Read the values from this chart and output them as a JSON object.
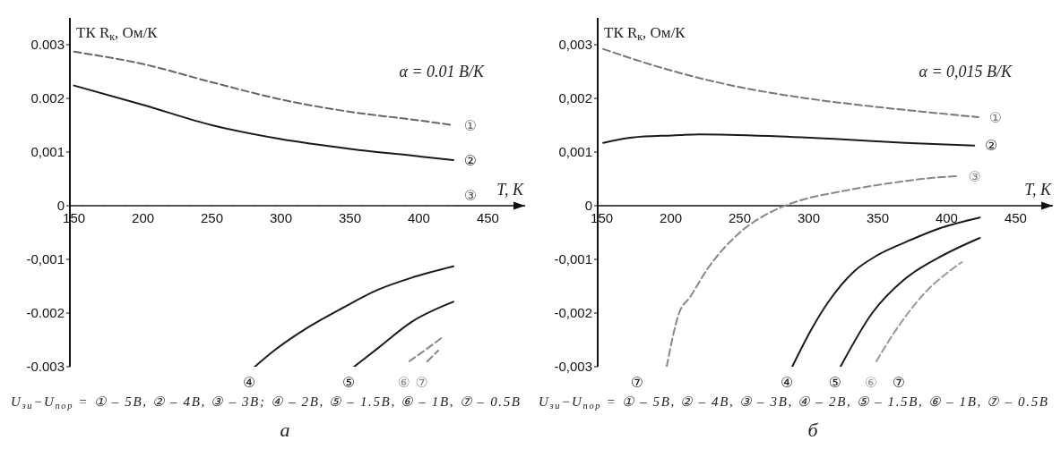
{
  "chart_data": [
    {
      "type": "line",
      "xlabel": "T, K",
      "ylabel": "ТК R$_{к}$, Ом/К",
      "xlim": [
        147,
        477
      ],
      "ylim": [
        -0.003,
        0.0035
      ],
      "xticks": [
        150,
        200,
        250,
        300,
        350,
        400,
        450
      ],
      "yticks": [
        -0.003,
        -0.002,
        {
          "value": -0.001,
          "label": "-0,001"
        },
        0,
        {
          "value": 0.001,
          "label": "0,001"
        },
        0.002,
        0.003
      ],
      "marker": "none",
      "series": [
        {
          "name": "①",
          "color": "#666666",
          "line_style": "dashed",
          "x": [
            150,
            200,
            250,
            300,
            350,
            400,
            425
          ],
          "values": [
            0.00287,
            0.00264,
            0.0023,
            0.00198,
            0.00175,
            0.00159,
            0.0015
          ]
        },
        {
          "name": "②",
          "color": "#1a1a1a",
          "line_style": "solid",
          "x": [
            150,
            200,
            250,
            300,
            350,
            400,
            425
          ],
          "values": [
            0.00224,
            0.00188,
            0.0015,
            0.00124,
            0.00106,
            0.00092,
            0.00085
          ]
        },
        {
          "name": "③",
          "color": "#555555",
          "line_style": "dashed",
          "x": [
            150,
            425
          ],
          "values": [
            0,
            0
          ]
        },
        {
          "name": "④",
          "color": "#1a1a1a",
          "line_style": "solid",
          "x": [
            281,
            295,
            320,
            345,
            370,
            395,
            425
          ],
          "values": [
            -0.003,
            -0.0027,
            -0.00226,
            -0.0019,
            -0.00157,
            -0.00134,
            -0.00113
          ]
        },
        {
          "name": "⑤",
          "color": "#1a1a1a",
          "line_style": "solid",
          "x": [
            353,
            370,
            395,
            425
          ],
          "values": [
            -0.003,
            -0.00266,
            -0.00216,
            -0.00179
          ]
        },
        {
          "name": "⑥",
          "color": "#888888",
          "line_style": "dashed",
          "x": [
            393,
            404,
            416
          ],
          "values": [
            -0.0029,
            -0.0027,
            -0.00247
          ]
        },
        {
          "name": "⑦",
          "color": "#888888",
          "line_style": "dashed",
          "x": [
            406,
            414
          ],
          "values": [
            -0.0029,
            -0.0027
          ]
        }
      ],
      "annotations": [
        "α = 0.01 В/К",
        "U$_{зи}$−U$_{пор}$ = ① – 5В, ② – 4В, ③ – 3В; ④ – 2В, ⑤ – 1.5В, ⑥ – 1В, ⑦ – 0.5В",
        "а"
      ]
    },
    {
      "type": "line",
      "xlabel": "T, K",
      "ylabel": "ТК R$_{к}$, Ом/К",
      "xlim": [
        147,
        477
      ],
      "ylim": [
        -0.003,
        0.0035
      ],
      "xticks": [
        150,
        200,
        250,
        300,
        350,
        400,
        450
      ],
      "yticks": [
        {
          "value": -0.003,
          "label": "-0,003"
        },
        {
          "value": -0.002,
          "label": "-0,002"
        },
        {
          "value": -0.001,
          "label": "-0,001"
        },
        0,
        {
          "value": 0.001,
          "label": "0,001"
        },
        {
          "value": 0.002,
          "label": "0,002"
        },
        {
          "value": 0.003,
          "label": "0,003"
        }
      ],
      "marker": "none",
      "series": [
        {
          "name": "①",
          "color": "#777777",
          "line_style": "dashed",
          "x": [
            151,
            196,
            246,
            296,
            346,
            395,
            423
          ],
          "values": [
            0.00292,
            0.00255,
            0.00223,
            0.00201,
            0.00185,
            0.00172,
            0.00165
          ]
        },
        {
          "name": "②",
          "color": "#1a1a1a",
          "line_style": "solid",
          "x": [
            151,
            172,
            201,
            221,
            271,
            321,
            370,
            420
          ],
          "values": [
            0.00117,
            0.00127,
            0.00131,
            0.00133,
            0.0013,
            0.00124,
            0.00117,
            0.00112
          ]
        },
        {
          "name": "③",
          "color": "#888888",
          "line_style": "dashed",
          "x": [
            197,
            206,
            214,
            226,
            250,
            274,
            298,
            320,
            346,
            370,
            390,
            408
          ],
          "values": [
            -0.003,
            -0.002,
            -0.0017,
            -0.0012,
            -0.0005,
            -0.0001,
            0.00013,
            0.00025,
            0.00037,
            0.00046,
            0.00052,
            0.00055
          ]
        },
        {
          "name": "④",
          "color": "#1a1a1a",
          "line_style": "solid",
          "x": [
            288,
            302,
            314,
            333,
            350,
            370,
            395,
            424
          ],
          "values": [
            -0.003,
            -0.0023,
            -0.0018,
            -0.00122,
            -0.00092,
            -0.00068,
            -0.00042,
            -0.00022
          ]
        },
        {
          "name": "⑤",
          "color": "#1a1a1a",
          "line_style": "solid",
          "x": [
            323,
            346,
            369,
            394,
            424
          ],
          "values": [
            -0.003,
            -0.002,
            -0.00138,
            -0.00097,
            -0.0006
          ]
        },
        {
          "name": "⑥",
          "color": "#999999",
          "line_style": "dashed",
          "x": [
            349,
            361,
            385,
            404,
            411
          ],
          "values": [
            -0.0029,
            -0.0024,
            -0.0016,
            -0.00118,
            -0.00105
          ]
        }
      ],
      "annotations": [
        "α = 0,015 В/К",
        "⑦",
        "⑦",
        "U$_{зи}$−U$_{пор}$ = ① – 5В, ② – 4В, ③ – 3В, ④ – 2В, ⑤ – 1.5В, ⑥ – 1В, ⑦ – 0.5В",
        "б"
      ]
    }
  ]
}
